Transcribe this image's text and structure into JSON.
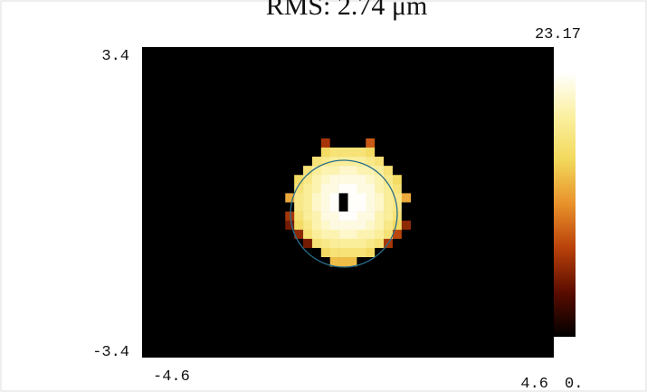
{
  "chart_data": {
    "type": "heatmap",
    "title": "RMS: 2.74 μm",
    "x": [
      -1.3,
      -1.1,
      -0.9,
      -0.7,
      -0.5,
      -0.3,
      -0.1,
      0.1,
      0.3,
      0.5,
      0.7,
      0.9,
      1.1,
      1.3
    ],
    "y": [
      1.3,
      1.1,
      0.9,
      0.7,
      0.5,
      0.3,
      0.1,
      -0.1,
      -0.3,
      -0.5,
      -0.7,
      -0.9,
      -1.1,
      -1.3
    ],
    "z": [
      [
        0,
        0,
        0,
        0,
        7,
        0,
        0,
        0,
        0,
        9,
        0,
        0,
        0,
        0
      ],
      [
        0,
        0,
        0,
        0,
        16,
        17,
        17,
        17,
        17,
        16,
        0,
        0,
        0,
        0
      ],
      [
        0,
        0,
        0,
        17,
        18,
        19,
        19,
        19,
        19,
        18,
        17,
        0,
        0,
        0
      ],
      [
        0,
        0,
        17,
        19,
        20,
        20,
        21,
        21,
        20,
        20,
        19,
        17,
        0,
        0
      ],
      [
        0,
        16,
        18,
        20,
        21,
        22,
        22,
        22,
        22,
        21,
        20,
        18,
        16,
        0
      ],
      [
        0,
        17,
        19,
        20,
        22,
        22,
        23,
        23,
        22,
        22,
        20,
        19,
        17,
        0
      ],
      [
        13,
        18,
        19,
        21,
        22,
        23,
        0,
        23,
        23,
        22,
        21,
        19,
        18,
        13
      ],
      [
        0,
        18,
        19,
        21,
        22,
        23,
        0,
        23,
        23,
        22,
        21,
        19,
        18,
        0
      ],
      [
        7,
        17,
        19,
        20,
        22,
        22,
        23,
        23,
        22,
        22,
        20,
        19,
        17,
        0
      ],
      [
        5,
        16,
        18,
        20,
        21,
        22,
        22,
        22,
        22,
        21,
        20,
        18,
        16,
        6
      ],
      [
        0,
        6,
        17,
        19,
        20,
        20,
        21,
        21,
        20,
        20,
        19,
        17,
        8,
        0
      ],
      [
        0,
        0,
        5,
        17,
        18,
        19,
        19,
        19,
        19,
        18,
        17,
        7,
        0,
        0
      ],
      [
        0,
        0,
        0,
        0,
        16,
        17,
        17,
        17,
        17,
        16,
        0,
        0,
        0,
        0
      ],
      [
        0,
        0,
        0,
        0,
        0,
        14,
        14,
        14,
        0,
        0,
        0,
        0,
        0,
        0
      ]
    ],
    "xlim": [
      -4.6,
      4.6
    ],
    "ylim": [
      -3.4,
      3.4
    ],
    "xticks": [
      -4.6,
      4.6
    ],
    "yticks": [
      -3.4,
      3.4
    ],
    "zlim": [
      0,
      23.17
    ],
    "zticks": [
      {
        "value": 0,
        "label": "0."
      },
      23.17
    ],
    "background": "#000000",
    "colormap": [
      "#000000",
      "#5a0c00",
      "#b8400a",
      "#e8902a",
      "#f2d85a",
      "#fbf0a0",
      "#ffffff"
    ]
  }
}
